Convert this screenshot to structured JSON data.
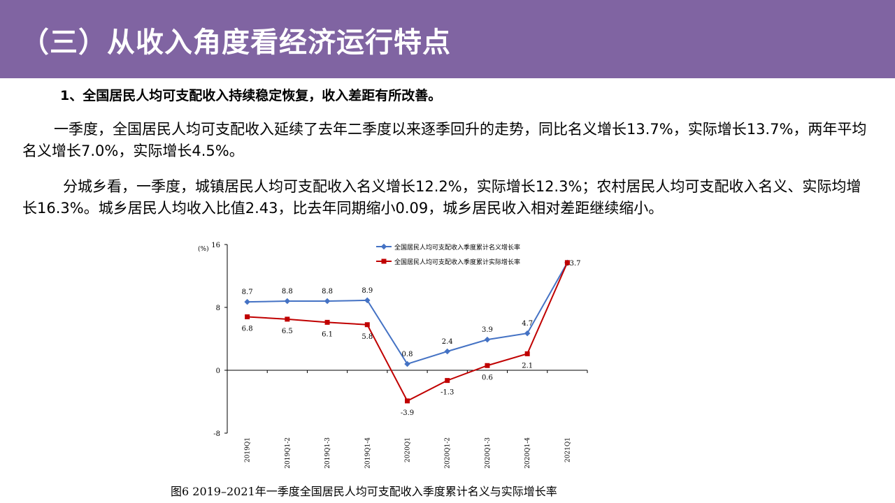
{
  "header": {
    "title": "（三）从收入角度看经济运行特点",
    "bg_color": "#8064a2"
  },
  "content": {
    "subheading": "1、全国居民人均可支配收入持续稳定恢复，收入差距有所改善。",
    "paragraph1": "一季度，全国居民人均可支配收入延续了去年二季度以来逐季回升的走势，同比名义增长13.7%，实际增长13.7%，两年平均名义增长7.0%，实际增长4.5%。",
    "paragraph2": "分城乡看，一季度，城镇居民人均可支配收入名义增长12.2%，实际增长12.3%；农村居民人均可支配收入名义、实际均增长16.3%。城乡居民人均收入比值2.43，比去年同期缩小0.09，城乡居民收入相对差距继续缩小。"
  },
  "chart_data": {
    "type": "line",
    "y_unit_label": "(%)",
    "categories": [
      "2019Q1",
      "2019Q1-2",
      "2019Q1-3",
      "2019Q1-4",
      "2020Q1",
      "2020Q1-2",
      "2020Q1-3",
      "2020Q1-4",
      "2021Q1"
    ],
    "ylim": [
      -8,
      16
    ],
    "yticks": [
      -8,
      0,
      8,
      16
    ],
    "legend_position": "top-right",
    "grid": false,
    "series": [
      {
        "name": "全国居民人均可支配收入季度累计名义增长率",
        "values": [
          8.7,
          8.8,
          8.8,
          8.9,
          0.8,
          2.4,
          3.9,
          4.7,
          13.7
        ],
        "labels": [
          "8.7",
          "8.8",
          "8.8",
          "8.9",
          "0.8",
          "2.4",
          "3.9",
          "4.7",
          "13.7"
        ],
        "color": "#4472c4"
      },
      {
        "name": "全国居民人均可支配收入季度累计实际增长率",
        "values": [
          6.8,
          6.5,
          6.1,
          5.8,
          -3.9,
          -1.3,
          0.6,
          2.1,
          13.7
        ],
        "labels": [
          "6.8",
          "6.5",
          "6.1",
          "5.8",
          "-3.9",
          "-1.3",
          "0.6",
          "2.1",
          ""
        ],
        "color": "#c00000"
      }
    ],
    "caption": "图6  2019–2021年一季度全国居民人均可支配收入季度累计名义与实际增长率"
  }
}
